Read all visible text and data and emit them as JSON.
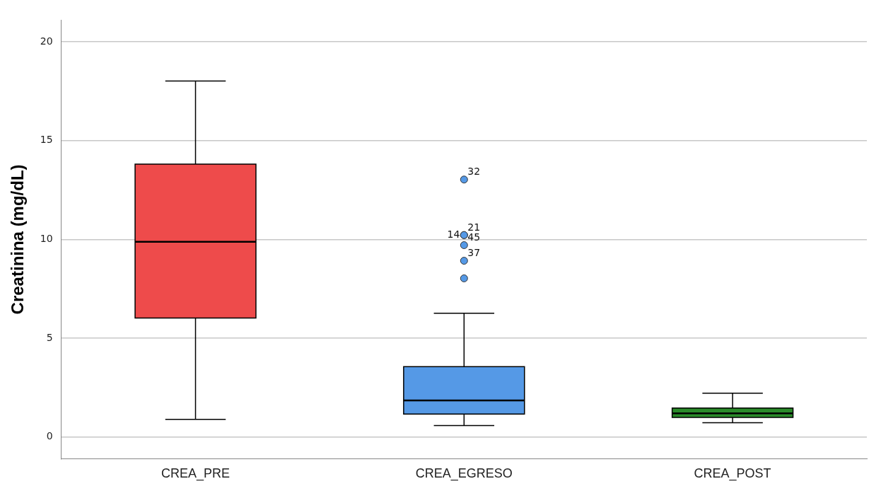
{
  "chart_data": {
    "type": "box",
    "categories": [
      "CREA_PRE",
      "CREA_EGRESO",
      "CREA_POST"
    ],
    "colors": [
      "#ee4b4b",
      "#5599e6",
      "#2a8a2a"
    ],
    "boxes": [
      {
        "low": 0.89,
        "q1": 6.02,
        "median": 9.88,
        "q3": 13.81,
        "high": 18.02
      },
      {
        "low": 0.58,
        "q1": 1.16,
        "median": 1.85,
        "q3": 3.56,
        "high": 6.26,
        "outliers": [
          13.03,
          10.22,
          10.22,
          9.71,
          8.92,
          8.03
        ]
      },
      {
        "low": 0.72,
        "q1": 0.99,
        "median": 1.2,
        "q3": 1.47,
        "high": 2.22
      }
    ],
    "ylabel": "Creatinina (mg/dL)",
    "ylim": [
      -1.1,
      21.1
    ],
    "yticks": [
      0,
      5,
      10,
      15,
      20
    ],
    "grid": "y",
    "annotations": [
      "32",
      "21",
      "14",
      "45",
      "37"
    ]
  }
}
